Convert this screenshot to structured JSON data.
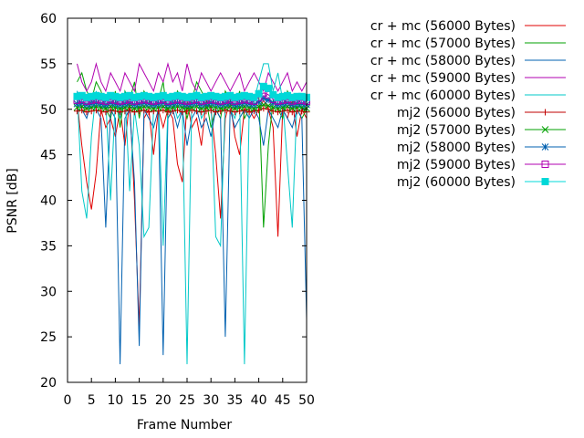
{
  "chart_data": {
    "type": "line",
    "xlabel": "Frame Number",
    "ylabel": "PSNR [dB]",
    "xlim": [
      0,
      50
    ],
    "ylim": [
      20,
      60
    ],
    "xticks": [
      0,
      5,
      10,
      15,
      20,
      25,
      30,
      35,
      40,
      45,
      50
    ],
    "xtick_labels": [
      "0",
      "5",
      "10",
      "15",
      "20",
      "25",
      "30",
      "35",
      "40",
      "45",
      "50"
    ],
    "yticks": [
      20,
      25,
      30,
      35,
      40,
      45,
      50,
      55,
      60
    ],
    "ytick_labels": [
      "20",
      "25",
      "30",
      "35",
      "40",
      "45",
      "50",
      "55",
      "60"
    ],
    "grid": false,
    "legend_position": "top-right outside",
    "x": [
      2,
      3,
      4,
      5,
      6,
      7,
      8,
      9,
      10,
      11,
      12,
      13,
      14,
      15,
      16,
      17,
      18,
      19,
      20,
      21,
      22,
      23,
      24,
      25,
      26,
      27,
      28,
      29,
      30,
      31,
      32,
      33,
      34,
      35,
      36,
      37,
      38,
      39,
      40,
      41,
      42,
      43,
      44,
      45,
      46,
      47,
      48,
      49,
      50
    ],
    "series": [
      {
        "name": "cr + mc (56000 Bytes)",
        "style": "line",
        "color": "#e00000",
        "values": [
          51,
          46,
          42,
          39,
          43,
          50,
          48,
          49,
          47,
          50,
          46,
          51,
          40,
          26,
          49,
          50,
          45,
          50,
          48,
          50,
          49,
          44,
          42,
          51,
          48,
          49,
          46,
          51,
          50,
          45,
          38,
          49,
          51,
          47,
          45,
          50,
          50,
          49,
          50,
          51,
          50,
          48,
          36,
          50,
          49,
          51,
          47,
          50,
          49
        ]
      },
      {
        "name": "cr + mc (57000 Bytes)",
        "style": "line",
        "color": "#00a000",
        "values": [
          53,
          54,
          52,
          51,
          53,
          52,
          50,
          49,
          52,
          48,
          52,
          51,
          53,
          49,
          52,
          51,
          50,
          51,
          53,
          49,
          50,
          52,
          51,
          49,
          51,
          53,
          52,
          51,
          48,
          50,
          49,
          52,
          51,
          50,
          52,
          49,
          50,
          51,
          52,
          37,
          46,
          51,
          50,
          49,
          52,
          51,
          50,
          49,
          50
        ]
      },
      {
        "name": "cr + mc (58000 Bytes)",
        "style": "line",
        "color": "#0060b0",
        "values": [
          52,
          50,
          49,
          51,
          50,
          49,
          37,
          50,
          49,
          22,
          49,
          50,
          42,
          24,
          50,
          49,
          48,
          50,
          23,
          49,
          50,
          48,
          50,
          46,
          49,
          50,
          48,
          49,
          47,
          50,
          49,
          25,
          50,
          48,
          49,
          50,
          49,
          50,
          49,
          46,
          50,
          49,
          48,
          50,
          49,
          48,
          50,
          49,
          27
        ]
      },
      {
        "name": "cr + mc (59000 Bytes)",
        "style": "line",
        "color": "#b000b0",
        "values": [
          55,
          53,
          52,
          53,
          55,
          53,
          52,
          54,
          53,
          52,
          54,
          53,
          52,
          55,
          54,
          53,
          52,
          54,
          53,
          55,
          53,
          54,
          52,
          55,
          53,
          52,
          54,
          53,
          52,
          53,
          54,
          53,
          52,
          53,
          54,
          52,
          53,
          54,
          53,
          52,
          54,
          53,
          52,
          53,
          54,
          52,
          53,
          52,
          53
        ]
      },
      {
        "name": "cr + mc (60000 Bytes)",
        "style": "line",
        "color": "#00c8c8",
        "values": [
          52,
          41,
          38,
          47,
          52,
          50,
          51,
          40,
          51,
          49,
          52,
          41,
          50,
          46,
          36,
          37,
          50,
          51,
          35,
          50,
          51,
          49,
          50,
          22,
          51,
          52,
          49,
          50,
          51,
          36,
          35,
          51,
          50,
          49,
          51,
          22,
          50,
          51,
          53,
          55,
          55,
          52,
          54,
          51,
          44,
          37,
          51,
          50,
          51
        ]
      },
      {
        "name": "mj2 (56000 Bytes)",
        "style": "linespoints",
        "color": "#c00000",
        "marker": "plus",
        "values": [
          49.8,
          49.9,
          49.7,
          49.8,
          49.9,
          49.8,
          49.7,
          49.9,
          49.8,
          49.7,
          49.8,
          49.9,
          49.7,
          49.8,
          49.9,
          49.7,
          49.8,
          49.8,
          49.9,
          49.7,
          49.8,
          49.9,
          49.7,
          49.8,
          49.9,
          49.8,
          49.7,
          49.8,
          49.9,
          49.7,
          49.8,
          49.9,
          49.8,
          49.7,
          49.8,
          49.9,
          49.7,
          49.8,
          49.9,
          50.1,
          50.0,
          49.8,
          49.7,
          49.8,
          49.9,
          49.7,
          49.8,
          49.8,
          49.7
        ]
      },
      {
        "name": "mj2 (57000 Bytes)",
        "style": "linespoints",
        "color": "#00a000",
        "marker": "x",
        "values": [
          50.2,
          50.3,
          50.1,
          50.2,
          50.3,
          50.2,
          50.1,
          50.3,
          50.2,
          50.1,
          50.2,
          50.3,
          50.1,
          50.2,
          50.3,
          50.2,
          50.1,
          50.2,
          50.3,
          50.1,
          50.2,
          50.3,
          50.2,
          50.1,
          50.2,
          50.3,
          50.1,
          50.2,
          50.3,
          50.2,
          50.1,
          50.2,
          50.3,
          50.1,
          50.2,
          50.3,
          50.2,
          50.1,
          50.3,
          50.5,
          50.4,
          50.2,
          50.1,
          50.2,
          50.3,
          50.1,
          50.2,
          50.2,
          50.1
        ]
      },
      {
        "name": "mj2 (58000 Bytes)",
        "style": "linespoints",
        "color": "#0060b0",
        "marker": "star",
        "values": [
          50.6,
          50.7,
          50.5,
          50.6,
          50.7,
          50.6,
          50.5,
          50.7,
          50.6,
          50.5,
          50.6,
          50.7,
          50.5,
          50.6,
          50.7,
          50.6,
          50.5,
          50.6,
          50.7,
          50.5,
          50.6,
          50.7,
          50.6,
          50.5,
          50.6,
          50.7,
          50.5,
          50.6,
          50.7,
          50.6,
          50.5,
          50.6,
          50.7,
          50.5,
          50.6,
          50.7,
          50.6,
          50.5,
          50.8,
          51.2,
          51.0,
          50.7,
          50.5,
          50.6,
          50.7,
          50.5,
          50.6,
          50.6,
          50.5
        ]
      },
      {
        "name": "mj2 (59000 Bytes)",
        "style": "linespoints",
        "color": "#b000b0",
        "marker": "square-open",
        "values": [
          51.0,
          51.1,
          50.9,
          51.0,
          51.1,
          51.0,
          50.9,
          51.1,
          51.0,
          50.9,
          51.0,
          51.1,
          50.9,
          51.0,
          51.1,
          51.0,
          50.9,
          51.0,
          51.1,
          50.9,
          51.0,
          51.1,
          51.0,
          50.9,
          51.0,
          51.1,
          50.9,
          51.0,
          51.1,
          51.0,
          50.9,
          51.0,
          51.1,
          50.9,
          51.0,
          51.1,
          51.0,
          50.9,
          51.3,
          51.8,
          51.6,
          51.1,
          50.9,
          51.0,
          51.1,
          50.9,
          51.0,
          51.0,
          50.9
        ]
      },
      {
        "name": "mj2 (60000 Bytes)",
        "style": "linespoints",
        "color": "#00d8d8",
        "marker": "square-filled",
        "values": [
          51.4,
          51.5,
          51.3,
          51.4,
          51.5,
          51.4,
          51.3,
          51.5,
          51.4,
          51.3,
          51.4,
          51.5,
          51.3,
          51.4,
          51.5,
          51.4,
          51.3,
          51.4,
          51.5,
          51.3,
          51.4,
          51.5,
          51.4,
          51.3,
          51.4,
          51.5,
          51.3,
          51.4,
          51.5,
          51.4,
          51.3,
          51.4,
          51.5,
          51.3,
          51.4,
          51.5,
          51.4,
          51.3,
          51.7,
          52.5,
          52.3,
          51.6,
          51.3,
          51.4,
          51.5,
          51.3,
          51.4,
          51.4,
          51.3
        ]
      }
    ]
  }
}
